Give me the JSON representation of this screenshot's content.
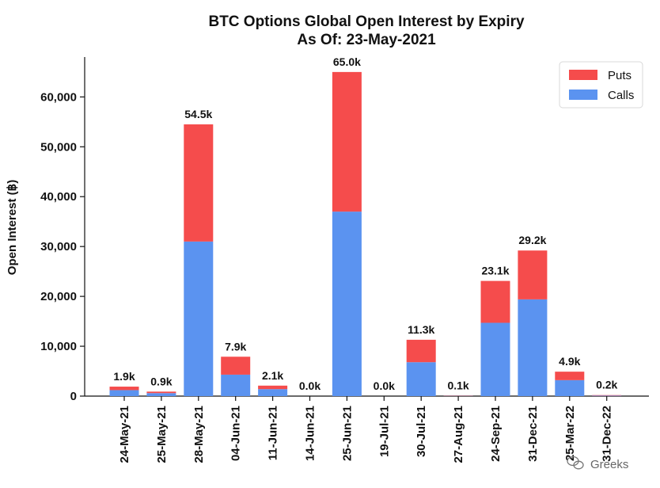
{
  "chart_data": {
    "type": "bar",
    "stacked": true,
    "title": "BTC Options Global Open Interest by Expiry",
    "subtitle": "As Of: 23-May-2021",
    "xlabel": "",
    "ylabel": "Open Interest (฿)",
    "ylim": [
      0,
      68000
    ],
    "yticks": [
      0,
      10000,
      20000,
      30000,
      40000,
      50000,
      60000
    ],
    "ytick_labels": [
      "0",
      "10,000",
      "20,000",
      "30,000",
      "40,000",
      "50,000",
      "60,000"
    ],
    "grid": false,
    "legend_position": "top-right",
    "categories": [
      "24-May-21",
      "25-May-21",
      "28-May-21",
      "04-Jun-21",
      "11-Jun-21",
      "14-Jun-21",
      "25-Jun-21",
      "19-Jul-21",
      "30-Jul-21",
      "27-Aug-21",
      "24-Sep-21",
      "31-Dec-21",
      "25-Mar-22",
      "31-Dec-22"
    ],
    "series": [
      {
        "name": "Calls",
        "color": "#5b93f0",
        "values": [
          1200,
          600,
          31000,
          4300,
          1400,
          0,
          37000,
          0,
          6800,
          50,
          14700,
          19400,
          3200,
          100
        ]
      },
      {
        "name": "Puts",
        "color": "#f54c4c",
        "values": [
          700,
          300,
          23500,
          3600,
          700,
          0,
          28000,
          0,
          4500,
          50,
          8400,
          9800,
          1700,
          100
        ]
      }
    ],
    "data_labels": [
      "1.9k",
      "0.9k",
      "54.5k",
      "7.9k",
      "2.1k",
      "0.0k",
      "65.0k",
      "0.0k",
      "11.3k",
      "0.1k",
      "23.1k",
      "29.2k",
      "4.9k",
      "0.2k"
    ]
  },
  "watermark": {
    "icon": "wechat-icon",
    "text": "Greeks"
  }
}
